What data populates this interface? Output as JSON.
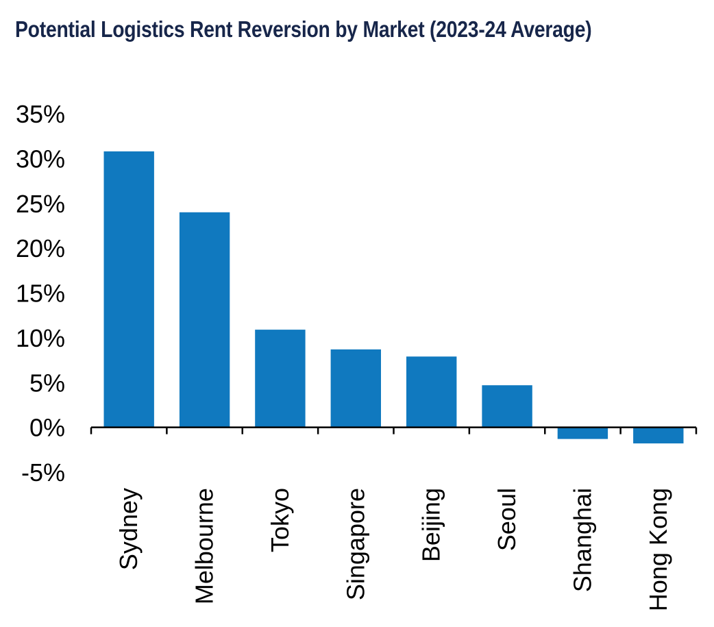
{
  "chart_data": {
    "type": "bar",
    "title": "Potential Logistics Rent Reversion by Market (2023-24 Average)",
    "xlabel": "",
    "ylabel": "",
    "categories": [
      "Sydney",
      "Melbourne",
      "Tokyo",
      "Singapore",
      "Beijing",
      "Seoul",
      "Shanghai",
      "Hong Kong"
    ],
    "values": [
      30.8,
      24.0,
      10.9,
      8.7,
      7.9,
      4.7,
      -1.3,
      -1.8
    ],
    "ylim": [
      -5,
      35
    ],
    "yticks": [
      35,
      30,
      25,
      20,
      15,
      10,
      5,
      0,
      -5
    ],
    "ytick_labels": [
      "35%",
      "30%",
      "25%",
      "20%",
      "15%",
      "10%",
      "5%",
      "0%",
      "-5%"
    ],
    "bar_color": "#1079bf",
    "grid": false,
    "legend": "none"
  }
}
